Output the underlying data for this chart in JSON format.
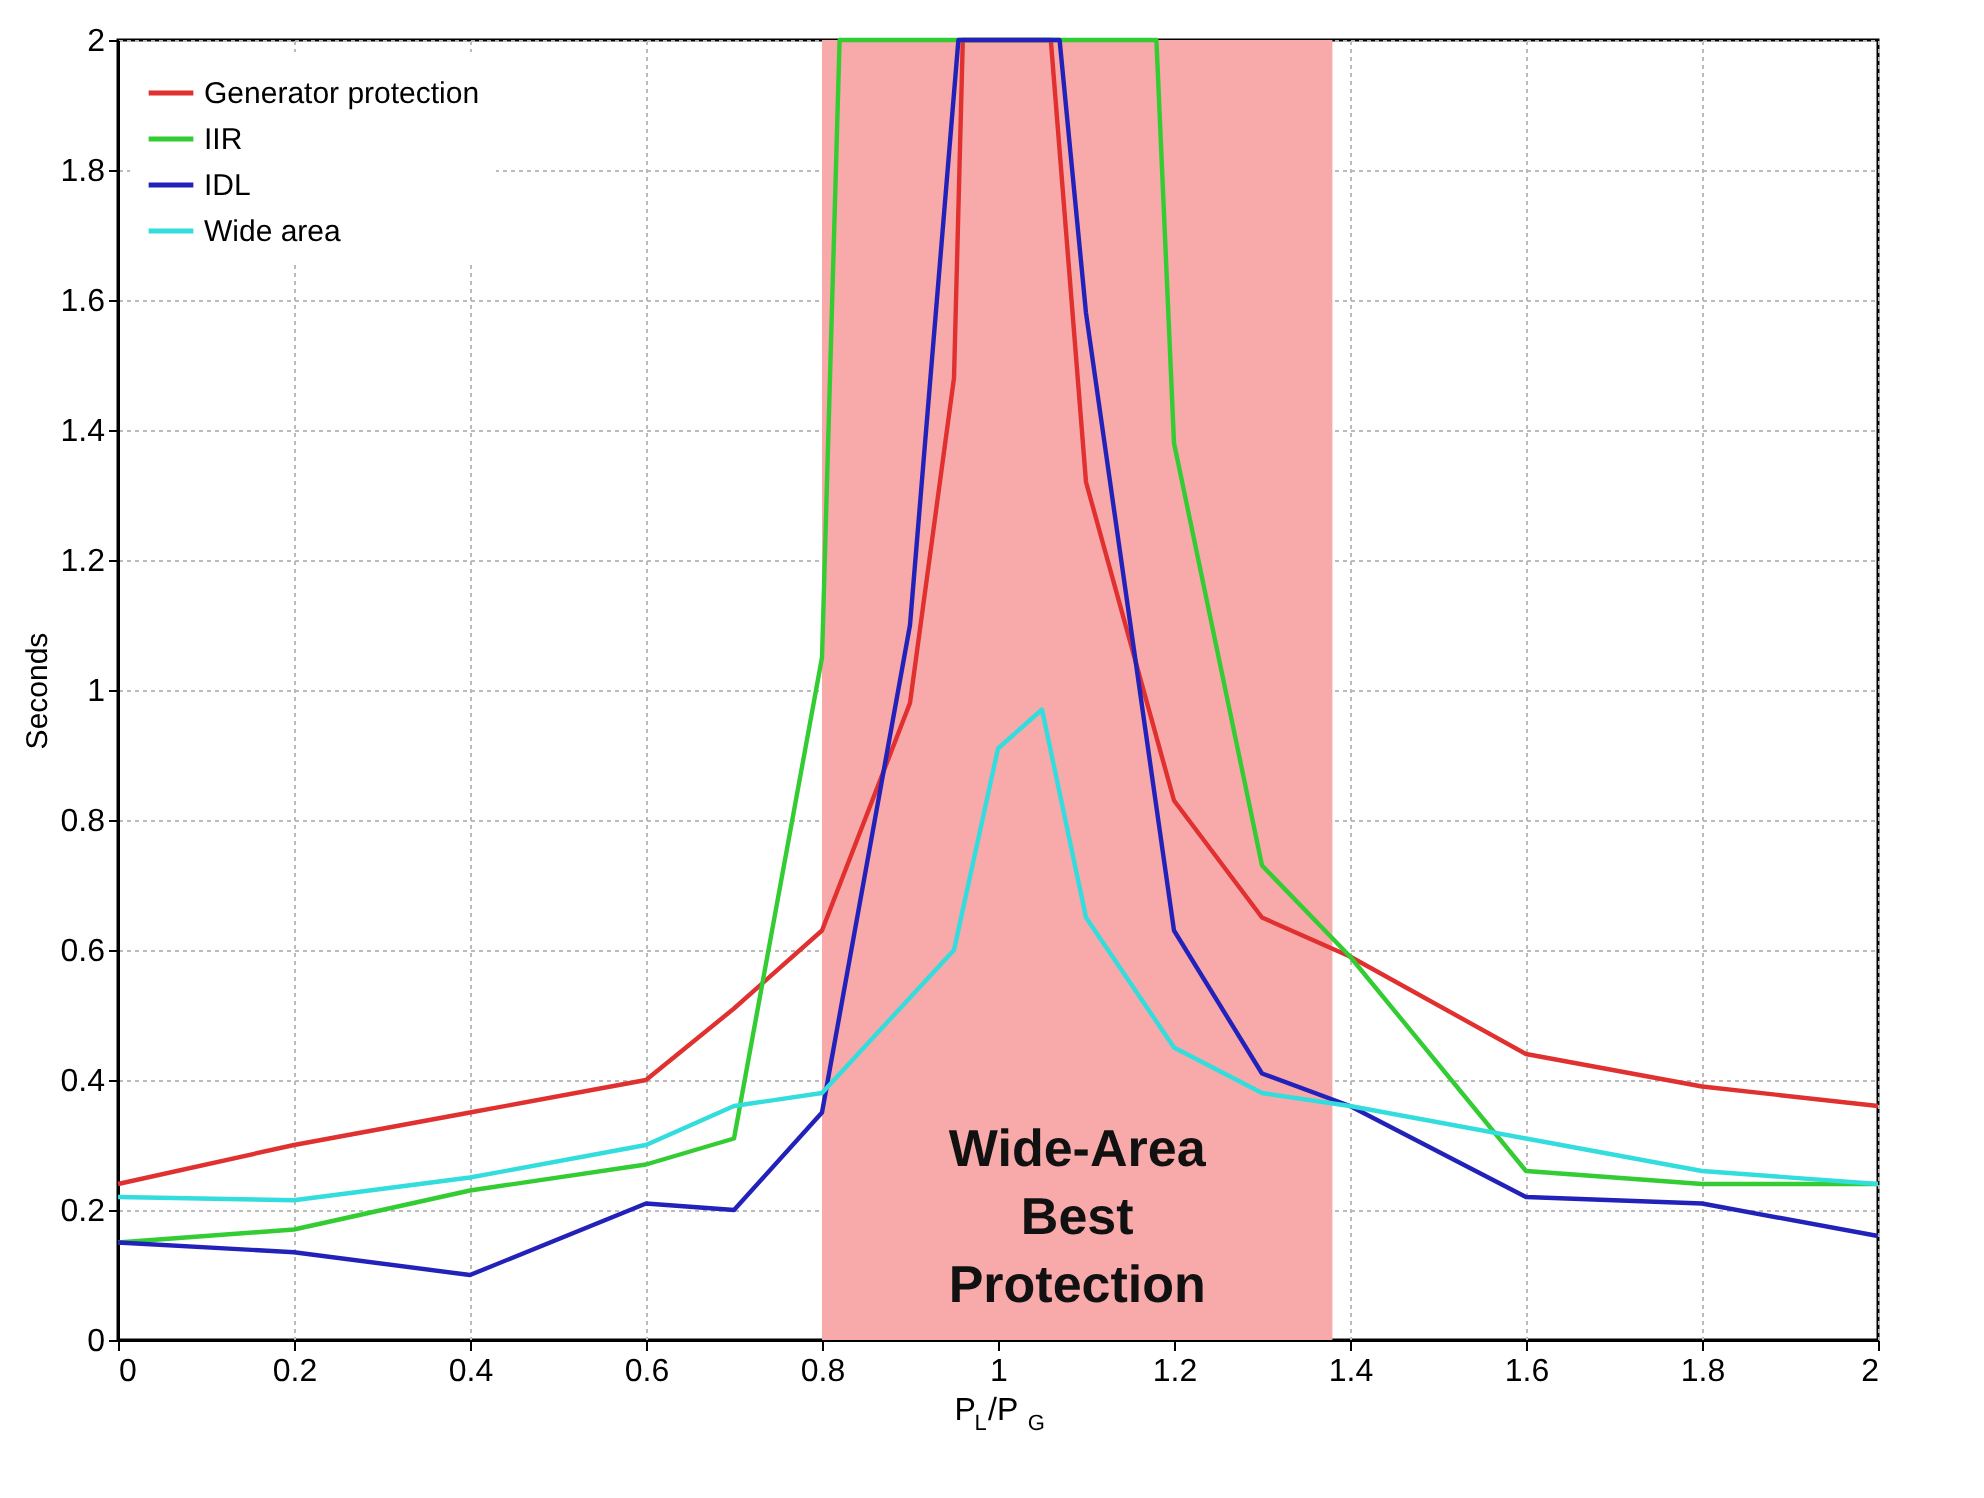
{
  "chart_data": {
    "type": "line",
    "xlabel": "P$_{L}$/P$_{G}$",
    "ylabel": "Seconds",
    "xlim": [
      0,
      2
    ],
    "ylim": [
      0,
      2
    ],
    "xticks": [
      {
        "value": 0,
        "label": "0"
      },
      0.2,
      0.4,
      0.6,
      0.8,
      {
        "value": 1,
        "label": "1"
      },
      1.2,
      1.4,
      1.6,
      1.8,
      {
        "value": 2,
        "label": "2"
      }
    ],
    "yticks": [
      {
        "value": 0,
        "label": "0"
      },
      0.2,
      0.4,
      0.6,
      0.8,
      {
        "value": 1,
        "label": "1"
      },
      1.2,
      1.4,
      1.6,
      1.8,
      {
        "value": 2,
        "label": "2"
      }
    ],
    "grid": true,
    "legend": "top left",
    "line_style": "solid",
    "marker": "none",
    "bands": [
      {
        "axis": "x",
        "from": 0.8,
        "to": 1.38,
        "label": "Wide-Area\nBest\nProtection",
        "color": "#f8a9a9"
      }
    ],
    "series": [
      {
        "name": "Generator protection",
        "color": "#e03030",
        "x": [
          0,
          0.2,
          0.4,
          0.6,
          0.7,
          0.8,
          0.9,
          0.95,
          0.96,
          1.06,
          1.1,
          1.2,
          1.3,
          1.4,
          1.6,
          1.8,
          2
        ],
        "values": [
          0.24,
          0.3,
          0.35,
          0.4,
          0.51,
          0.63,
          0.98,
          1.48,
          2,
          2,
          1.32,
          0.83,
          0.65,
          0.59,
          0.44,
          0.39,
          0.36
        ]
      },
      {
        "name": "IIR",
        "color": "#33cc33",
        "x": [
          0,
          0.2,
          0.4,
          0.6,
          0.7,
          0.8,
          0.82,
          1.18,
          1.2,
          1.3,
          1.4,
          1.6,
          1.8,
          2
        ],
        "values": [
          0.15,
          0.17,
          0.23,
          0.27,
          0.31,
          1.05,
          2,
          2,
          1.38,
          0.73,
          0.59,
          0.26,
          0.24,
          0.24
        ]
      },
      {
        "name": "IDL",
        "color": "#2222bb",
        "x": [
          0,
          0.2,
          0.4,
          0.6,
          0.7,
          0.8,
          0.9,
          0.955,
          1.07,
          1.1,
          1.2,
          1.3,
          1.4,
          1.6,
          1.8,
          2
        ],
        "values": [
          0.15,
          0.135,
          0.1,
          0.21,
          0.2,
          0.35,
          1.1,
          2,
          2,
          1.58,
          0.63,
          0.41,
          0.36,
          0.22,
          0.21,
          0.16
        ]
      },
      {
        "name": "Wide area",
        "color": "#33dddd",
        "x": [
          0,
          0.2,
          0.4,
          0.6,
          0.7,
          0.8,
          0.95,
          1,
          1.05,
          1.1,
          1.2,
          1.3,
          1.4,
          1.6,
          1.8,
          2
        ],
        "values": [
          0.22,
          0.215,
          0.25,
          0.3,
          0.36,
          0.38,
          0.6,
          0.91,
          0.97,
          0.65,
          0.45,
          0.38,
          0.36,
          0.31,
          0.26,
          0.24
        ]
      }
    ]
  }
}
